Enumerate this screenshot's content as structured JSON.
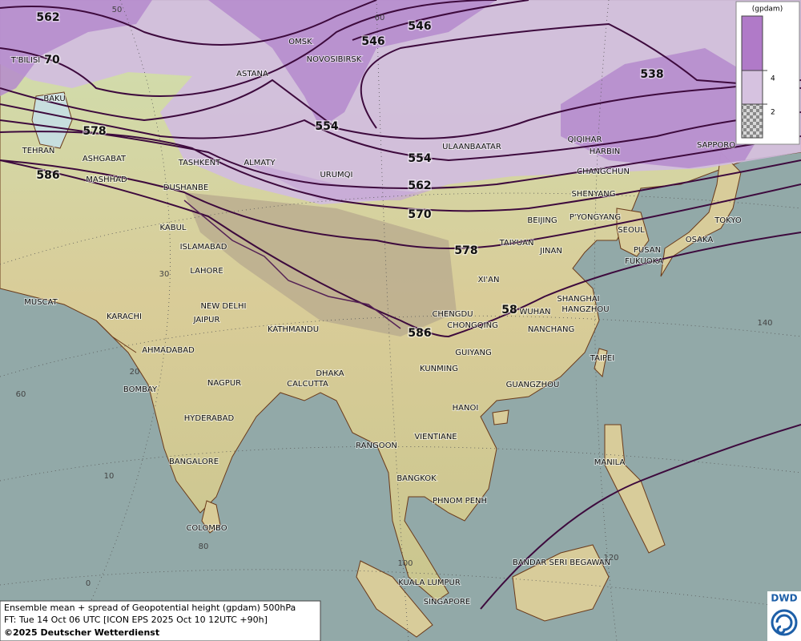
{
  "legend": {
    "unit": "(gpdam)",
    "ticks": [
      4,
      2
    ]
  },
  "caption": {
    "line1": "Ensemble mean + spread of Geopotential height (gpdam) 500hPa",
    "line2": "FT: Tue 14 Oct 06 UTC [ICON EPS 2025 Oct 10 12UTC +90h]",
    "line3": "©2025 Deutscher Wetterdienst"
  },
  "logo": "DWD",
  "contour_labels": [
    562,
    70,
    546,
    546,
    538,
    554,
    554,
    562,
    570,
    578,
    578,
    586,
    586,
    58
  ],
  "graticule_labels": [
    50,
    60,
    30,
    20,
    10,
    0,
    60,
    80,
    100,
    120,
    140
  ],
  "cities": [
    "T'BILISI",
    "BAKU",
    "TEHRAN",
    "ASHGABAT",
    "MASHHAD",
    "TASHKENT",
    "DUSHANBE",
    "ALMATY",
    "OMSK",
    "NOVOSIBIRSK",
    "ASTANA",
    "URUMQI",
    "ULAANBAATAR",
    "QIQIHAR",
    "HARBIN",
    "CHANGCHUN",
    "SHENYANG",
    "SAPPORO",
    "BEIJING",
    "P'YONGYANG",
    "SEOUL",
    "TOKYO",
    "OSAKA",
    "PUSAN",
    "FUKUOKA",
    "TAIYUAN",
    "JINAN",
    "XI'AN",
    "KABUL",
    "ISLAMABAD",
    "LAHORE",
    "NEW DELHI",
    "MUSCAT",
    "KARACHI",
    "JAIPUR",
    "KATHMANDU",
    "SHANGHAI",
    "HANGZHOU",
    "WUHAN",
    "CHENGDU",
    "CHONGQING",
    "NANCHANG",
    "AHMADABAD",
    "GUIYANG",
    "TAIPEI",
    "KUNMING",
    "DHAKA",
    "CALCUTTA",
    "NAGPUR",
    "BOMBAY",
    "GUANGZHOU",
    "HANOI",
    "HYDERABAD",
    "RANGOON",
    "VIENTIANE",
    "BANGALORE",
    "MANILA",
    "BANGKOK",
    "PHNOM PENH",
    "COLOMBO",
    "BANDAR SERI BEGAWAN",
    "KUALA LUMPUR",
    "SINGAPORE"
  ]
}
